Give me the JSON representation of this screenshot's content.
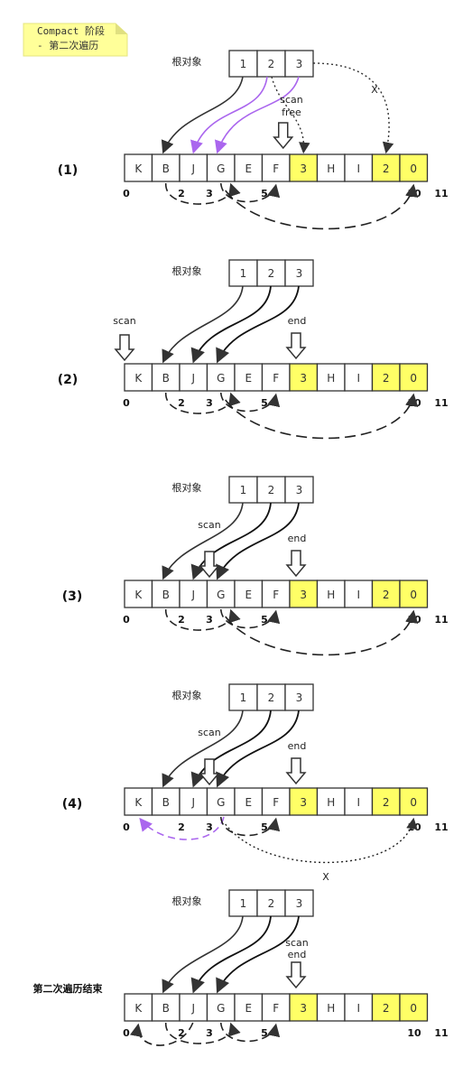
{
  "note": {
    "line1": "Compact 阶段",
    "line2": "- 第二次遍历"
  },
  "colors": {
    "highlight": "#ffff66",
    "note_bg": "#ffff99",
    "purple": "#aa66ee",
    "stroke": "#333333"
  },
  "root_label": "根对象",
  "roots": [
    "1",
    "2",
    "3"
  ],
  "cells": [
    {
      "label": "K",
      "highlight": false
    },
    {
      "label": "B",
      "highlight": false
    },
    {
      "label": "J",
      "highlight": false
    },
    {
      "label": "G",
      "highlight": false
    },
    {
      "label": "E",
      "highlight": false
    },
    {
      "label": "F",
      "highlight": false
    },
    {
      "label": "3",
      "highlight": true
    },
    {
      "label": "H",
      "highlight": false
    },
    {
      "label": "I",
      "highlight": false
    },
    {
      "label": "2",
      "highlight": true
    },
    {
      "label": "0",
      "highlight": true
    }
  ],
  "indices": [
    "0",
    "2",
    "3",
    "5",
    "10",
    "11"
  ],
  "stages": [
    {
      "label": "(1)",
      "scan_label": "scan",
      "free_label": "free",
      "end_label": "",
      "x_mark": "X"
    },
    {
      "label": "(2)",
      "scan_label": "scan",
      "end_label": "end"
    },
    {
      "label": "(3)",
      "scan_label": "scan",
      "end_label": "end"
    },
    {
      "label": "(4)",
      "scan_label": "scan",
      "end_label": "end",
      "x_mark": "X"
    },
    {
      "label": "第二次遍历结束",
      "scan_label": "scan",
      "end_label": "end"
    }
  ]
}
